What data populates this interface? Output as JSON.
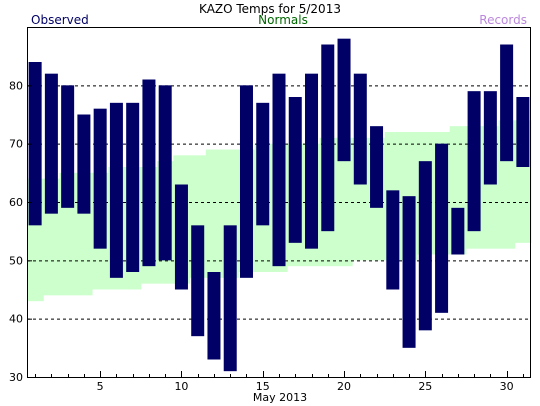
{
  "chart_data": {
    "type": "bar",
    "title": "KAZO Temps for 5/2013",
    "xlabel": "May 2013",
    "ylabel": "",
    "legend": {
      "observed": "Observed",
      "normals": "Normals",
      "records": "Records"
    },
    "colors": {
      "observed": "#000066",
      "normals": "#ccffcc",
      "observed_label": "#000066",
      "normals_label": "#006600",
      "records_label": "#bb88dd",
      "grid": "#000000",
      "axis": "#000000"
    },
    "grid": "dashed horizontal",
    "ylim": [
      30,
      90
    ],
    "xlim": [
      0.5,
      31.5
    ],
    "y_ticks": [
      30,
      40,
      50,
      60,
      70,
      80
    ],
    "x_ticks": [
      5,
      10,
      15,
      20,
      25,
      30
    ],
    "days": [
      1,
      2,
      3,
      4,
      5,
      6,
      7,
      8,
      9,
      10,
      11,
      12,
      13,
      14,
      15,
      16,
      17,
      18,
      19,
      20,
      21,
      22,
      23,
      24,
      25,
      26,
      27,
      28,
      29,
      30,
      31
    ],
    "series": [
      {
        "name": "Observed",
        "low": [
          56,
          58,
          59,
          58,
          52,
          47,
          48,
          49,
          50,
          45,
          37,
          33,
          31,
          47,
          56,
          49,
          53,
          52,
          55,
          67,
          63,
          59,
          45,
          35,
          38,
          41,
          51,
          55,
          63,
          67,
          66
        ],
        "high": [
          84,
          82,
          80,
          75,
          76,
          77,
          77,
          81,
          80,
          63,
          56,
          48,
          56,
          80,
          77,
          82,
          78,
          82,
          87,
          88,
          82,
          73,
          62,
          61,
          67,
          70,
          59,
          79,
          79,
          87,
          78
        ]
      },
      {
        "name": "Normals",
        "low": [
          43,
          44,
          44,
          44,
          45,
          45,
          45,
          46,
          46,
          46,
          47,
          47,
          47,
          48,
          48,
          48,
          49,
          49,
          49,
          49,
          50,
          50,
          50,
          50,
          51,
          51,
          51,
          52,
          52,
          52,
          53
        ],
        "high": [
          64,
          64,
          65,
          65,
          65,
          66,
          66,
          66,
          67,
          68,
          68,
          69,
          69,
          69,
          70,
          70,
          70,
          70,
          71,
          71,
          71,
          71,
          72,
          72,
          72,
          72,
          73,
          73,
          73,
          74,
          74
        ]
      }
    ]
  }
}
